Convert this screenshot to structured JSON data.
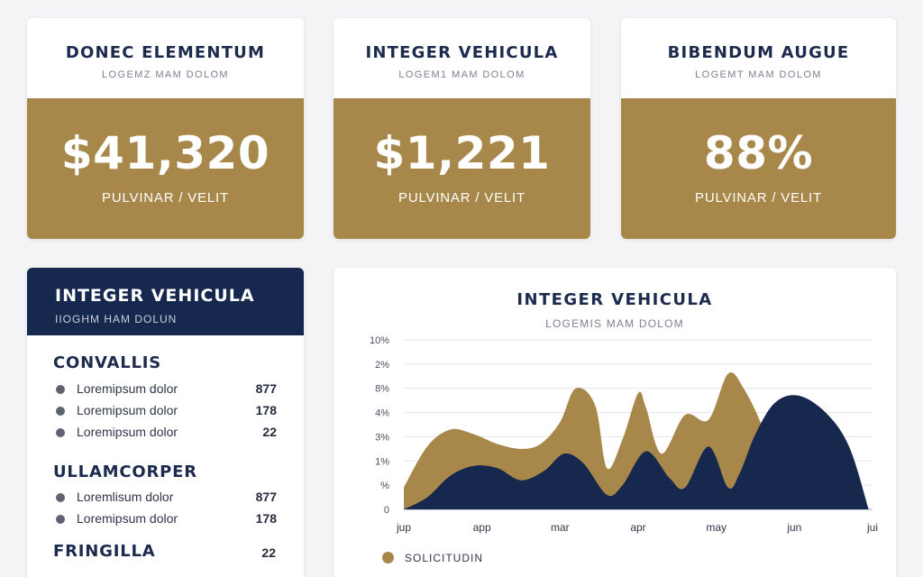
{
  "kpis": [
    {
      "title": "DONEC ELEMENTUM",
      "subtitle": "LOGEMZ MAM DOLOM",
      "value": "$41,320",
      "caption": "PULVINAR / VELIT"
    },
    {
      "title": "INTEGER VEHICULA",
      "subtitle": "LOGEM1 MAM DOLOM",
      "value": "$1,221",
      "caption": "PULVINAR / VELIT"
    },
    {
      "title": "BIBENDUM AUGUE",
      "subtitle": "LOGEMT MAM DOLOM",
      "value": "88%",
      "caption": "PULVINAR / VELIT"
    }
  ],
  "list_panel": {
    "title": "INTEGER VEHICULA",
    "subtitle": "IIOGHM HAM DOLUN",
    "sections": [
      {
        "title": "CONVALLIS",
        "items": [
          {
            "label": "Loremipsum dolor",
            "value": "877"
          },
          {
            "label": "Loremipsum dolor",
            "value": "178"
          },
          {
            "label": "Loremipsum dolor",
            "value": "22"
          }
        ]
      },
      {
        "title": "ULLAMCORPER",
        "items": [
          {
            "label": "Loremlisum dolor",
            "value": "877"
          },
          {
            "label": "Loremipsum dolor",
            "value": "178"
          }
        ]
      },
      {
        "title": "FRINGILLA",
        "value": "22",
        "items": []
      }
    ]
  },
  "chart_panel": {
    "title": "INTEGER VEHICULA",
    "subtitle": "LOGEMIS MAM DOLOM",
    "legend": "SOLICITUDIN"
  },
  "chart_data": {
    "type": "area",
    "x": [
      "jup",
      "app",
      "mar",
      "apr",
      "may",
      "jun",
      "jui"
    ],
    "y_ticks": [
      "10%",
      "2%",
      "8%",
      "4%",
      "3%",
      "1%",
      "%",
      "0"
    ],
    "ylim": [
      0,
      7
    ],
    "grid": true,
    "legend_position": "bottom-left",
    "series": [
      {
        "name": "SOLICITUDIN",
        "color": "#a8884a",
        "x": [
          0,
          0.3,
          0.6,
          0.9,
          1.2,
          1.5,
          1.75,
          2.0,
          2.2,
          2.45,
          2.6,
          2.8,
          3.0,
          3.1,
          3.3,
          3.6,
          3.9,
          4.15,
          4.35,
          4.6,
          4.7,
          4.85
        ],
        "values": [
          0.9,
          2.6,
          3.3,
          3.1,
          2.7,
          2.5,
          2.7,
          3.6,
          5.0,
          4.3,
          1.7,
          2.9,
          4.8,
          4.2,
          2.3,
          3.9,
          3.7,
          5.6,
          5.0,
          3.3,
          1.6,
          0.0
        ]
      },
      {
        "color": "#16284e",
        "x": [
          0,
          0.3,
          0.6,
          0.9,
          1.2,
          1.5,
          1.8,
          2.05,
          2.3,
          2.6,
          2.8,
          3.1,
          3.4,
          3.6,
          3.9,
          4.15,
          4.3,
          4.5,
          4.75,
          5.05,
          5.4,
          5.7,
          5.95
        ],
        "values": [
          0.0,
          0.5,
          1.4,
          1.8,
          1.7,
          1.2,
          1.6,
          2.3,
          1.9,
          0.6,
          1.0,
          2.4,
          1.3,
          0.9,
          2.6,
          0.9,
          1.5,
          3.1,
          4.4,
          4.7,
          4.0,
          2.6,
          0.0
        ]
      }
    ]
  }
}
